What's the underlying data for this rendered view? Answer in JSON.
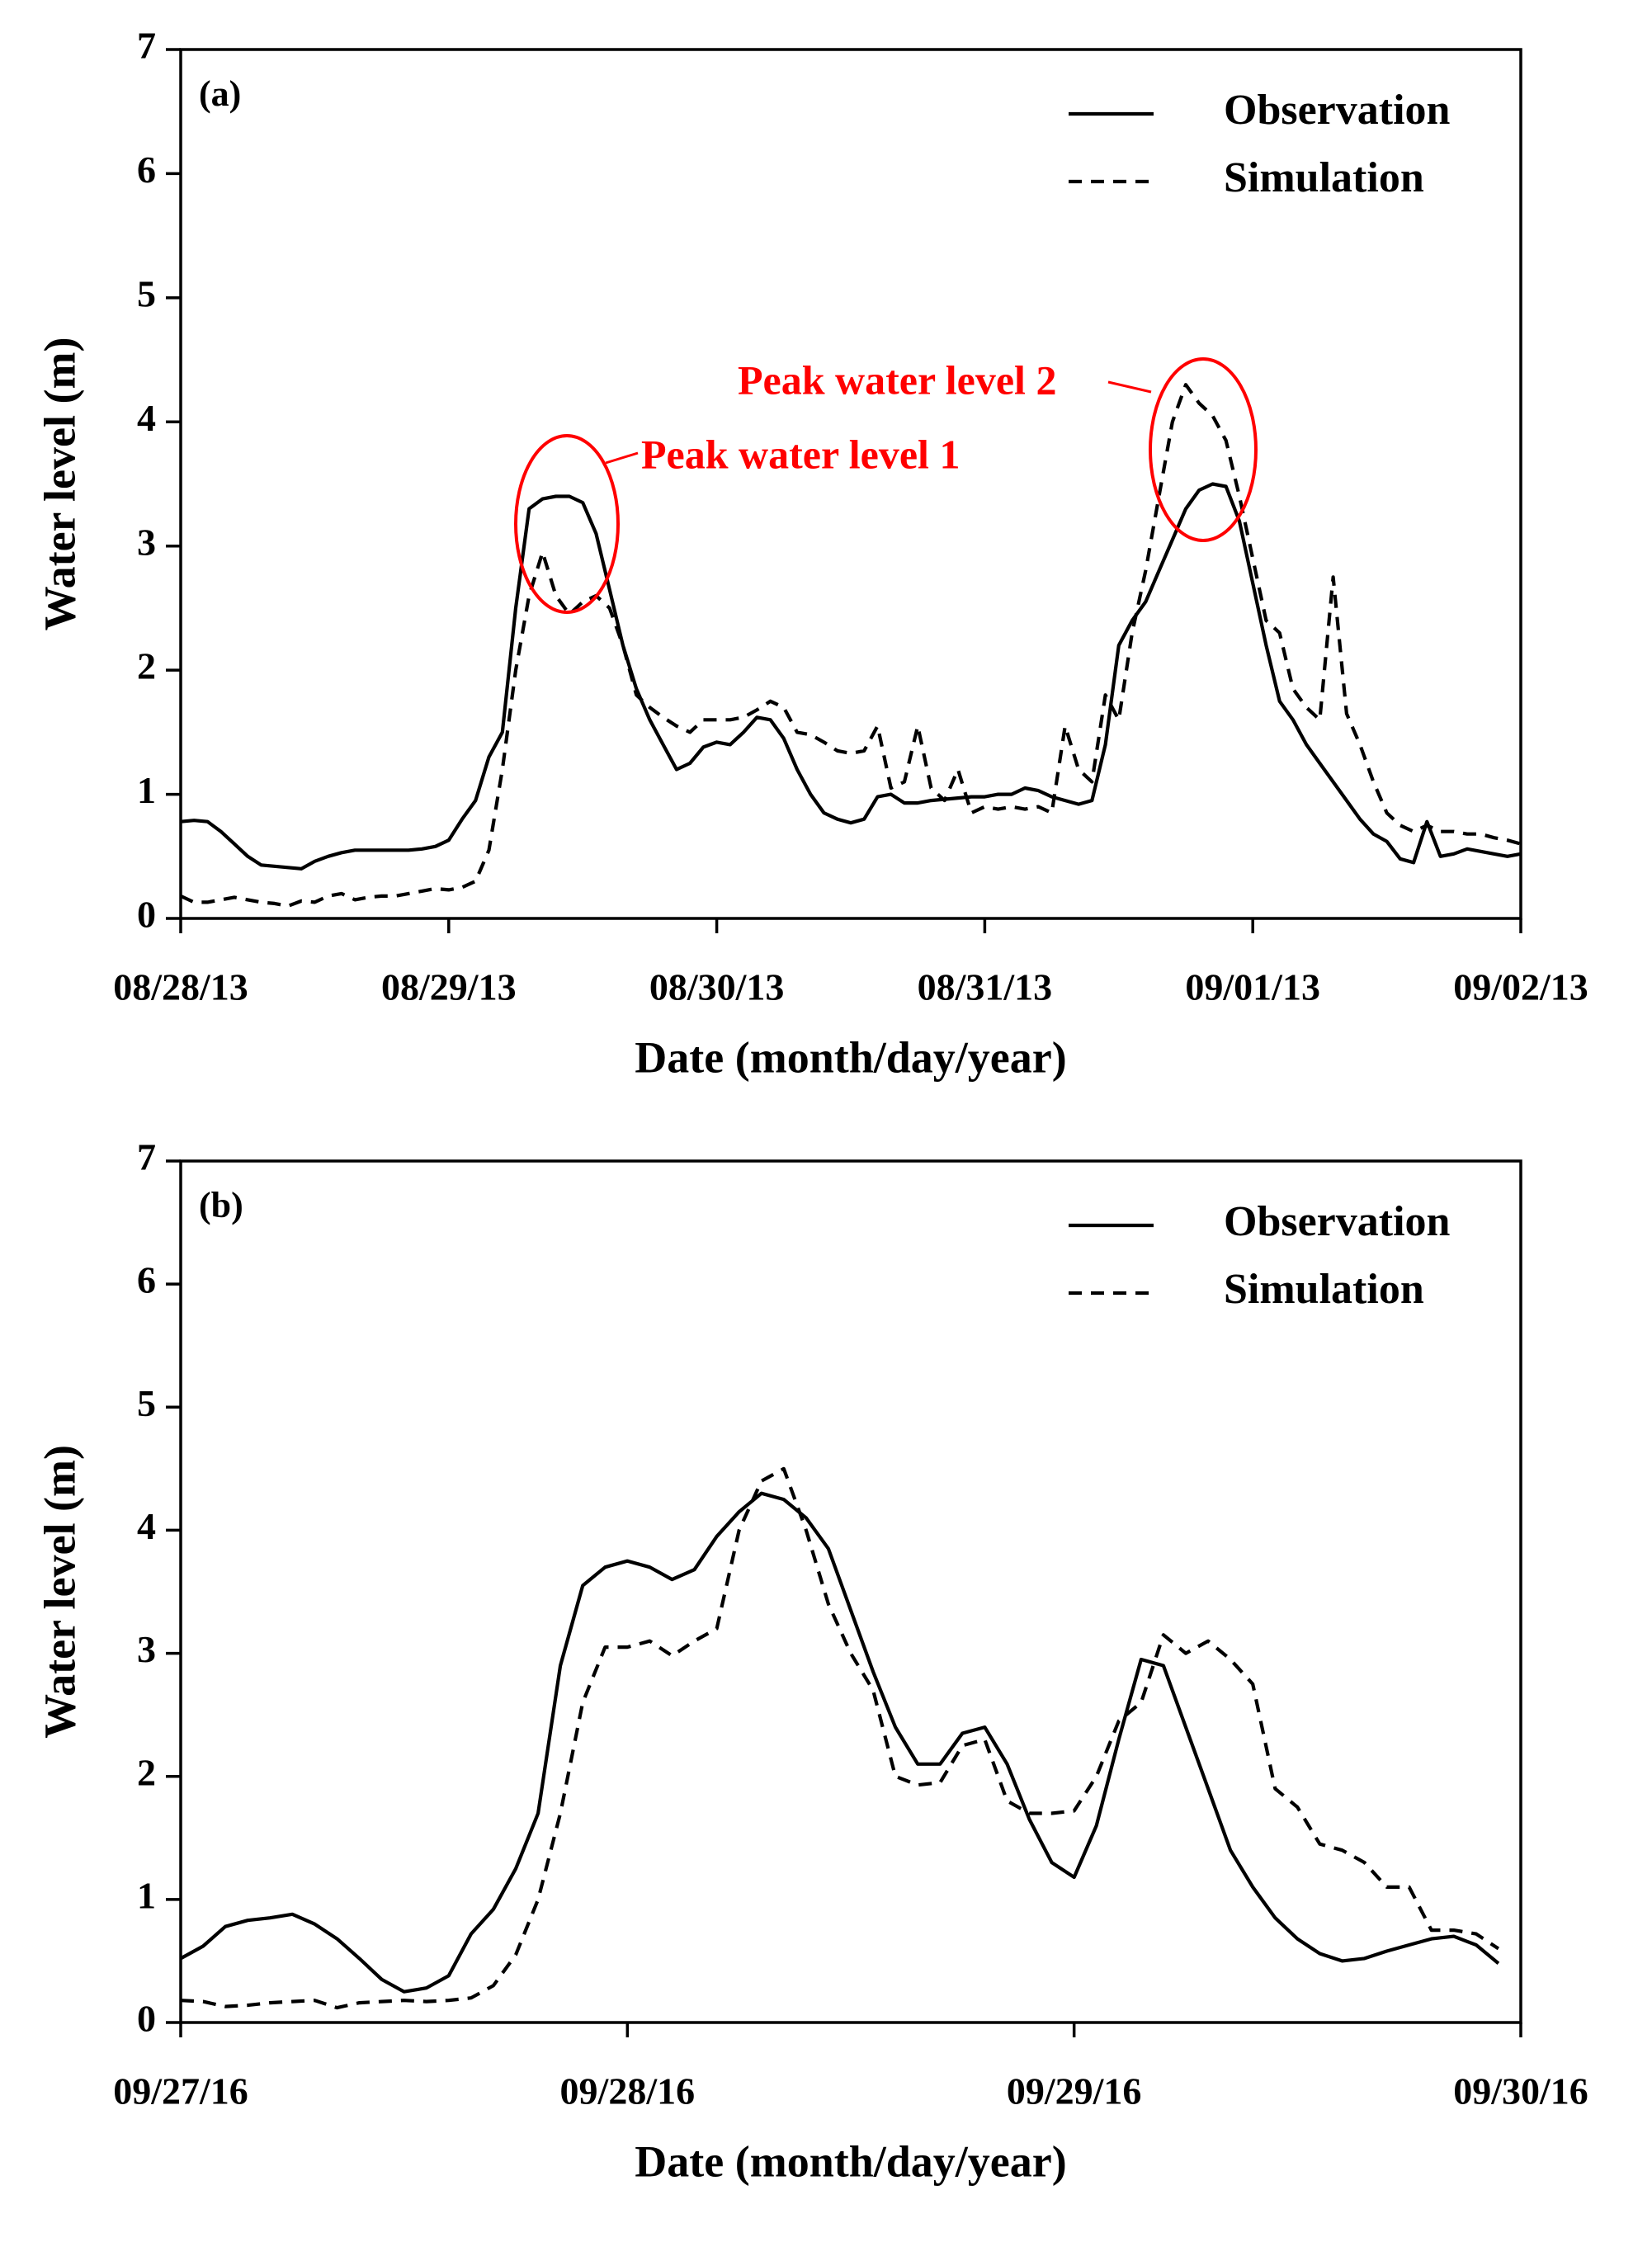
{
  "chart_data": [
    {
      "type": "line",
      "panel_label": "(a)",
      "xlabel": "Date (month/day/year)",
      "ylabel": "Water level (m)",
      "xlim": [
        0,
        5
      ],
      "xticks": [
        {
          "value": 0,
          "label": "08/28/13"
        },
        {
          "value": 1,
          "label": "08/29/13"
        },
        {
          "value": 2,
          "label": "08/30/13"
        },
        {
          "value": 3,
          "label": "08/31/13"
        },
        {
          "value": 4,
          "label": "09/01/13"
        },
        {
          "value": 5,
          "label": "09/02/13"
        }
      ],
      "ylim": [
        0,
        7
      ],
      "yticks": [
        0,
        1,
        2,
        3,
        4,
        5,
        6,
        7
      ],
      "legend": "upper right",
      "x": [
        0,
        0.05,
        0.1,
        0.15,
        0.2,
        0.25,
        0.3,
        0.35,
        0.4,
        0.45,
        0.5,
        0.55,
        0.6,
        0.65,
        0.7,
        0.75,
        0.8,
        0.85,
        0.9,
        0.95,
        1,
        1.05,
        1.1,
        1.15,
        1.2,
        1.25,
        1.3,
        1.35,
        1.4,
        1.45,
        1.5,
        1.55,
        1.6,
        1.65,
        1.7,
        1.75,
        1.8,
        1.85,
        1.9,
        1.95,
        2,
        2.05,
        2.1,
        2.15,
        2.2,
        2.25,
        2.3,
        2.35,
        2.4,
        2.45,
        2.5,
        2.55,
        2.6,
        2.65,
        2.7,
        2.75,
        2.8,
        2.85,
        2.9,
        2.95,
        3,
        3.05,
        3.1,
        3.15,
        3.2,
        3.25,
        3.3,
        3.35,
        3.4,
        3.45,
        3.5,
        3.55,
        3.6,
        3.65,
        3.7,
        3.75,
        3.8,
        3.85,
        3.9,
        3.95,
        4,
        4.05,
        4.1,
        4.15,
        4.2,
        4.25,
        4.3,
        4.35,
        4.4,
        4.45,
        4.5,
        4.55,
        4.6,
        4.65,
        4.7,
        4.75,
        4.8,
        4.85,
        4.9,
        4.95,
        5
      ],
      "series": [
        {
          "name": "Observation",
          "color": "#000000",
          "dash": "solid",
          "values": [
            0.78,
            0.79,
            0.78,
            0.7,
            0.6,
            0.5,
            0.43,
            0.42,
            0.41,
            0.4,
            0.46,
            0.5,
            0.53,
            0.55,
            0.55,
            0.55,
            0.55,
            0.55,
            0.56,
            0.58,
            0.63,
            0.8,
            0.95,
            1.3,
            1.5,
            2.5,
            3.3,
            3.38,
            3.4,
            3.4,
            3.35,
            3.1,
            2.65,
            2.2,
            1.85,
            1.6,
            1.4,
            1.2,
            1.25,
            1.38,
            1.42,
            1.4,
            1.5,
            1.62,
            1.6,
            1.45,
            1.2,
            1.0,
            0.85,
            0.8,
            0.77,
            0.8,
            0.98,
            1.0,
            0.93,
            0.93,
            0.95,
            0.96,
            0.97,
            0.98,
            0.98,
            1.0,
            1.0,
            1.05,
            1.03,
            0.98,
            0.95,
            0.92,
            0.95,
            1.4,
            2.2,
            2.4,
            2.55,
            2.8,
            3.05,
            3.3,
            3.45,
            3.5,
            3.48,
            3.2,
            2.7,
            2.2,
            1.75,
            1.6,
            1.4,
            1.25,
            1.1,
            0.95,
            0.8,
            0.68,
            0.62,
            0.48,
            0.45,
            0.78,
            0.5,
            0.52,
            0.56,
            0.54,
            0.52,
            0.5,
            0.52
          ]
        },
        {
          "name": "Simulation",
          "color": "#000000",
          "dash": "dashed",
          "values": [
            0.18,
            0.13,
            0.13,
            0.15,
            0.17,
            0.15,
            0.13,
            0.12,
            0.1,
            0.14,
            0.13,
            0.18,
            0.2,
            0.15,
            0.17,
            0.18,
            0.18,
            0.2,
            0.22,
            0.24,
            0.23,
            0.25,
            0.3,
            0.55,
            1.2,
            2.0,
            2.6,
            2.95,
            2.6,
            2.45,
            2.55,
            2.6,
            2.5,
            2.2,
            1.8,
            1.7,
            1.62,
            1.55,
            1.5,
            1.6,
            1.6,
            1.6,
            1.62,
            1.68,
            1.75,
            1.7,
            1.5,
            1.48,
            1.42,
            1.35,
            1.33,
            1.35,
            1.55,
            1.05,
            1.1,
            1.55,
            1.05,
            0.95,
            1.2,
            0.85,
            0.9,
            0.88,
            0.9,
            0.88,
            0.9,
            0.85,
            1.55,
            1.2,
            1.1,
            1.8,
            1.6,
            2.3,
            2.8,
            3.4,
            4.0,
            4.3,
            4.15,
            4.05,
            3.85,
            3.4,
            2.9,
            2.4,
            2.3,
            1.85,
            1.7,
            1.6,
            2.75,
            1.65,
            1.4,
            1.1,
            0.85,
            0.75,
            0.7,
            0.75,
            0.7,
            0.7,
            0.68,
            0.68,
            0.65,
            0.63,
            0.6
          ]
        }
      ],
      "annotations": [
        {
          "text": "Peak water level 1",
          "color": "#ff0000"
        },
        {
          "text": "Peak water level 2",
          "color": "#ff0000"
        }
      ]
    },
    {
      "type": "line",
      "panel_label": "(b)",
      "xlabel": "Date (month/day/year)",
      "ylabel": "Water level (m)",
      "xlim": [
        0,
        3
      ],
      "xticks": [
        {
          "value": 0,
          "label": "09/27/16"
        },
        {
          "value": 1,
          "label": "09/28/16"
        },
        {
          "value": 2,
          "label": "09/29/16"
        },
        {
          "value": 3,
          "label": "09/30/16"
        }
      ],
      "ylim": [
        0,
        7
      ],
      "yticks": [
        0,
        1,
        2,
        3,
        4,
        5,
        6,
        7
      ],
      "legend": "upper right",
      "x": [
        0,
        0.05,
        0.1,
        0.15,
        0.2,
        0.25,
        0.3,
        0.35,
        0.4,
        0.45,
        0.5,
        0.55,
        0.6,
        0.65,
        0.7,
        0.75,
        0.8,
        0.85,
        0.9,
        0.95,
        1,
        1.05,
        1.1,
        1.15,
        1.2,
        1.25,
        1.3,
        1.35,
        1.4,
        1.45,
        1.5,
        1.55,
        1.6,
        1.65,
        1.7,
        1.75,
        1.8,
        1.85,
        1.9,
        1.95,
        2,
        2.05,
        2.1,
        2.15,
        2.2,
        2.25,
        2.3,
        2.35,
        2.4,
        2.45,
        2.5,
        2.55,
        2.6,
        2.65,
        2.7,
        2.75,
        2.8,
        2.85,
        2.9,
        2.95
      ],
      "series": [
        {
          "name": "Observation",
          "color": "#000000",
          "dash": "solid",
          "values": [
            0.52,
            0.62,
            0.78,
            0.83,
            0.85,
            0.88,
            0.8,
            0.68,
            0.52,
            0.35,
            0.25,
            0.28,
            0.38,
            0.72,
            0.92,
            1.25,
            1.7,
            2.9,
            3.55,
            3.7,
            3.75,
            3.7,
            3.6,
            3.68,
            3.95,
            4.15,
            4.3,
            4.25,
            4.1,
            3.85,
            3.35,
            2.85,
            2.4,
            2.1,
            2.1,
            2.35,
            2.4,
            2.1,
            1.65,
            1.3,
            1.18,
            1.6,
            2.3,
            2.95,
            2.9,
            2.4,
            1.9,
            1.4,
            1.1,
            0.85,
            0.68,
            0.56,
            0.5,
            0.52,
            0.58,
            0.63,
            0.68,
            0.7,
            0.63,
            0.48
          ]
        },
        {
          "name": "Simulation",
          "color": "#000000",
          "dash": "dashed",
          "values": [
            0.18,
            0.17,
            0.13,
            0.14,
            0.16,
            0.17,
            0.18,
            0.12,
            0.16,
            0.17,
            0.18,
            0.17,
            0.18,
            0.2,
            0.3,
            0.55,
            1.0,
            1.7,
            2.6,
            3.05,
            3.05,
            3.1,
            2.98,
            3.1,
            3.2,
            4.0,
            4.4,
            4.5,
            4.0,
            3.4,
            3.0,
            2.7,
            2.0,
            1.93,
            1.95,
            2.25,
            2.3,
            1.8,
            1.7,
            1.7,
            1.72,
            2.0,
            2.45,
            2.6,
            3.15,
            3.0,
            3.1,
            2.95,
            2.75,
            1.9,
            1.75,
            1.45,
            1.4,
            1.3,
            1.1,
            1.1,
            0.75,
            0.75,
            0.72,
            0.6
          ]
        }
      ]
    }
  ]
}
